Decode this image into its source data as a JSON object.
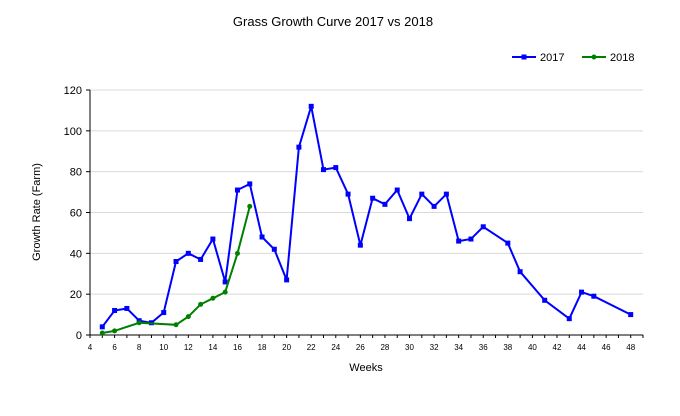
{
  "chart_data": {
    "type": "line",
    "title": "Grass Growth Curve 2017 vs 2018",
    "xlabel": "Weeks",
    "ylabel": "Growth Rate (Farm)",
    "xlim": [
      4,
      49
    ],
    "ylim": [
      0,
      120
    ],
    "xticks": [
      4,
      6,
      8,
      10,
      12,
      14,
      16,
      18,
      20,
      22,
      24,
      26,
      28,
      30,
      32,
      34,
      36,
      38,
      40,
      42,
      44,
      46,
      48
    ],
    "yticks": [
      0,
      20,
      40,
      60,
      80,
      100,
      120
    ],
    "grid": "horizontal",
    "legend_position": "top-right",
    "series": [
      {
        "name": "2017",
        "color": "#0000ff",
        "marker": "square",
        "points": [
          [
            5,
            4
          ],
          [
            6,
            12
          ],
          [
            7,
            13
          ],
          [
            8,
            7
          ],
          [
            9,
            6
          ],
          [
            10,
            11
          ],
          [
            11,
            36
          ],
          [
            12,
            40
          ],
          [
            13,
            37
          ],
          [
            14,
            47
          ],
          [
            15,
            26
          ],
          [
            16,
            71
          ],
          [
            17,
            74
          ],
          [
            18,
            48
          ],
          [
            19,
            42
          ],
          [
            20,
            27
          ],
          [
            21,
            92
          ],
          [
            22,
            112
          ],
          [
            23,
            81
          ],
          [
            24,
            82
          ],
          [
            25,
            69
          ],
          [
            26,
            44
          ],
          [
            27,
            67
          ],
          [
            28,
            64
          ],
          [
            29,
            71
          ],
          [
            30,
            57
          ],
          [
            31,
            69
          ],
          [
            32,
            63
          ],
          [
            33,
            69
          ],
          [
            34,
            46
          ],
          [
            35,
            47
          ],
          [
            36,
            53
          ],
          [
            38,
            45
          ],
          [
            39,
            31
          ],
          [
            41,
            17
          ],
          [
            43,
            8
          ],
          [
            44,
            21
          ],
          [
            45,
            19
          ],
          [
            48,
            10
          ]
        ]
      },
      {
        "name": "2018",
        "color": "#008000",
        "marker": "circle",
        "points": [
          [
            5,
            1
          ],
          [
            6,
            2
          ],
          [
            8,
            6
          ],
          [
            11,
            5
          ],
          [
            12,
            9
          ],
          [
            13,
            15
          ],
          [
            14,
            18
          ],
          [
            15,
            21
          ],
          [
            16,
            40
          ],
          [
            17,
            63
          ]
        ]
      }
    ]
  }
}
